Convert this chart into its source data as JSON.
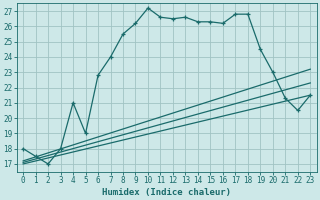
{
  "xlabel": "Humidex (Indice chaleur)",
  "bg_color": "#cde8e8",
  "grid_color": "#a0c4c4",
  "line_color": "#1a6b6b",
  "xlim": [
    -0.5,
    23.5
  ],
  "ylim": [
    16.5,
    27.5
  ],
  "yticks": [
    17,
    18,
    19,
    20,
    21,
    22,
    23,
    24,
    25,
    26,
    27
  ],
  "xticks": [
    0,
    1,
    2,
    3,
    4,
    5,
    6,
    7,
    8,
    9,
    10,
    11,
    12,
    13,
    14,
    15,
    16,
    17,
    18,
    19,
    20,
    21,
    22,
    23
  ],
  "series1_x": [
    0,
    1,
    2,
    3,
    4,
    5,
    6,
    7,
    8,
    9,
    10,
    11,
    12,
    13,
    14,
    15,
    16,
    17,
    18,
    19,
    20,
    21,
    22,
    23
  ],
  "series1_y": [
    18.0,
    17.5,
    17.0,
    18.0,
    21.0,
    19.0,
    22.8,
    24.0,
    25.5,
    26.2,
    27.2,
    26.6,
    26.5,
    26.6,
    26.3,
    26.3,
    26.2,
    26.8,
    26.8,
    24.5,
    23.0,
    21.3,
    20.5,
    21.5
  ],
  "series2_x": [
    0,
    23
  ],
  "series2_y": [
    17.2,
    23.2
  ],
  "series3_x": [
    0,
    23
  ],
  "series3_y": [
    17.0,
    21.5
  ],
  "series4_x": [
    0,
    23
  ],
  "series4_y": [
    17.1,
    22.3
  ]
}
